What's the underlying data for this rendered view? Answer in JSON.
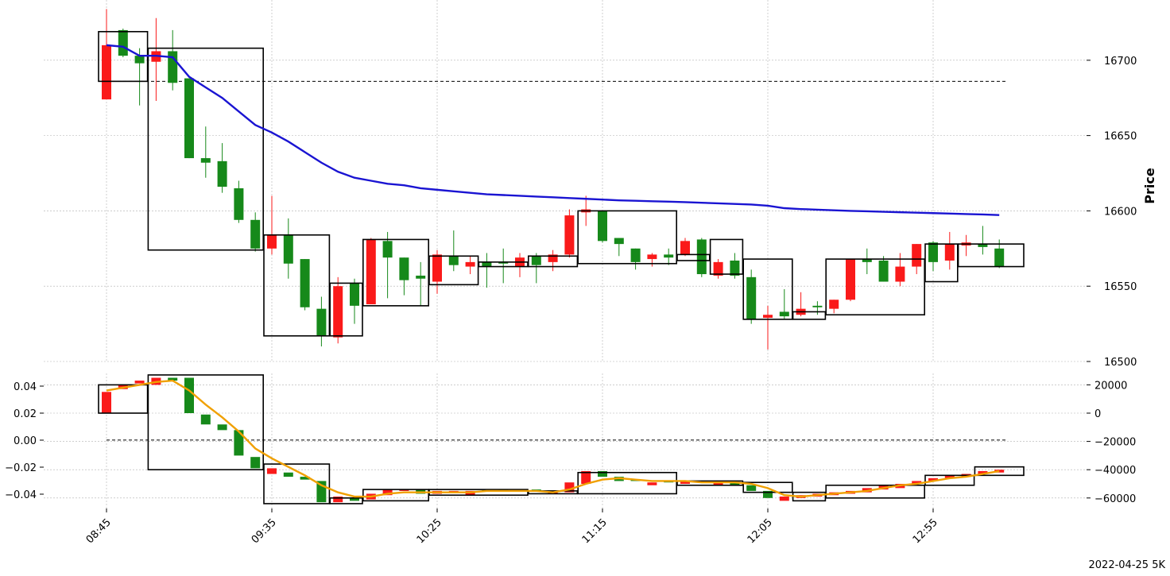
{
  "chart_data": {
    "type": "candlestick",
    "footer_label": "2022-04-25 5K",
    "colors": {
      "up": "#16891a",
      "down": "#fa1a1a",
      "ma_price": "#1a14d2",
      "ma_volume": "#f0a000",
      "box": "#000000",
      "grid": "#b0b0b0"
    },
    "x_tick_labels": [
      "08:45",
      "09:35",
      "10:25",
      "11:15",
      "12:05",
      "12:55"
    ],
    "x_tick_indices": [
      0,
      10,
      20,
      30,
      40,
      50
    ],
    "price_panel": {
      "ylabel": "Price",
      "y_ticks": [
        16500,
        16550,
        16600,
        16650,
        16700
      ],
      "ylim": [
        16500,
        16740
      ],
      "reference_line": 16686,
      "candles": [
        {
          "o": 16674,
          "h": 16734,
          "l": 16675,
          "c": 16710,
          "dir": "down"
        },
        {
          "o": 16703,
          "h": 16721,
          "l": 16702,
          "c": 16720,
          "dir": "up"
        },
        {
          "o": 16698,
          "h": 16708,
          "l": 16670,
          "c": 16703,
          "dir": "up"
        },
        {
          "o": 16706,
          "h": 16728,
          "l": 16673,
          "c": 16699,
          "dir": "down"
        },
        {
          "o": 16685,
          "h": 16720,
          "l": 16680,
          "c": 16706,
          "dir": "up"
        },
        {
          "o": 16635,
          "h": 16688,
          "l": 16635,
          "c": 16688,
          "dir": "up"
        },
        {
          "o": 16632,
          "h": 16656,
          "l": 16622,
          "c": 16635,
          "dir": "up"
        },
        {
          "o": 16616,
          "h": 16645,
          "l": 16612,
          "c": 16633,
          "dir": "up"
        },
        {
          "o": 16594,
          "h": 16620,
          "l": 16592,
          "c": 16615,
          "dir": "up"
        },
        {
          "o": 16575,
          "h": 16599,
          "l": 16573,
          "c": 16594,
          "dir": "up"
        },
        {
          "o": 16575,
          "h": 16610,
          "l": 16571,
          "c": 16584,
          "dir": "down"
        },
        {
          "o": 16565,
          "h": 16595,
          "l": 16555,
          "c": 16584,
          "dir": "up"
        },
        {
          "o": 16536,
          "h": 16568,
          "l": 16534,
          "c": 16568,
          "dir": "up"
        },
        {
          "o": 16517,
          "h": 16543,
          "l": 16510,
          "c": 16535,
          "dir": "up"
        },
        {
          "o": 16550,
          "h": 16556,
          "l": 16512,
          "c": 16516,
          "dir": "down"
        },
        {
          "o": 16537,
          "h": 16555,
          "l": 16525,
          "c": 16552,
          "dir": "up"
        },
        {
          "o": 16538,
          "h": 16582,
          "l": 16538,
          "c": 16581,
          "dir": "down"
        },
        {
          "o": 16569,
          "h": 16586,
          "l": 16542,
          "c": 16580,
          "dir": "up"
        },
        {
          "o": 16554,
          "h": 16569,
          "l": 16544,
          "c": 16569,
          "dir": "up"
        },
        {
          "o": 16555,
          "h": 16566,
          "l": 16537,
          "c": 16557,
          "dir": "up"
        },
        {
          "o": 16553,
          "h": 16574,
          "l": 16545,
          "c": 16571,
          "dir": "down"
        },
        {
          "o": 16564,
          "h": 16587,
          "l": 16560,
          "c": 16570,
          "dir": "up"
        },
        {
          "o": 16563,
          "h": 16570,
          "l": 16558,
          "c": 16566,
          "dir": "down"
        },
        {
          "o": 16563,
          "h": 16572,
          "l": 16549,
          "c": 16566,
          "dir": "up"
        },
        {
          "o": 16565,
          "h": 16575,
          "l": 16552,
          "c": 16566,
          "dir": "up"
        },
        {
          "o": 16563,
          "h": 16572,
          "l": 16556,
          "c": 16569,
          "dir": "down"
        },
        {
          "o": 16564,
          "h": 16572,
          "l": 16552,
          "c": 16570,
          "dir": "up"
        },
        {
          "o": 16566,
          "h": 16574,
          "l": 16560,
          "c": 16571,
          "dir": "down"
        },
        {
          "o": 16571,
          "h": 16601,
          "l": 16569,
          "c": 16597,
          "dir": "down"
        },
        {
          "o": 16599,
          "h": 16610,
          "l": 16590,
          "c": 16601,
          "dir": "down"
        },
        {
          "o": 16580,
          "h": 16600,
          "l": 16579,
          "c": 16600,
          "dir": "up"
        },
        {
          "o": 16578,
          "h": 16582,
          "l": 16570,
          "c": 16582,
          "dir": "up"
        },
        {
          "o": 16566,
          "h": 16575,
          "l": 16561,
          "c": 16575,
          "dir": "up"
        },
        {
          "o": 16568,
          "h": 16572,
          "l": 16563,
          "c": 16571,
          "dir": "down"
        },
        {
          "o": 16569,
          "h": 16575,
          "l": 16564,
          "c": 16571,
          "dir": "up"
        },
        {
          "o": 16571,
          "h": 16582,
          "l": 16570,
          "c": 16580,
          "dir": "down"
        },
        {
          "o": 16558,
          "h": 16582,
          "l": 16556,
          "c": 16581,
          "dir": "up"
        },
        {
          "o": 16557,
          "h": 16568,
          "l": 16555,
          "c": 16566,
          "dir": "down"
        },
        {
          "o": 16557,
          "h": 16572,
          "l": 16555,
          "c": 16567,
          "dir": "up"
        },
        {
          "o": 16528,
          "h": 16561,
          "l": 16525,
          "c": 16556,
          "dir": "up"
        },
        {
          "o": 16529,
          "h": 16537,
          "l": 16508,
          "c": 16531,
          "dir": "down"
        },
        {
          "o": 16530,
          "h": 16548,
          "l": 16528,
          "c": 16533,
          "dir": "up"
        },
        {
          "o": 16531,
          "h": 16546,
          "l": 16530,
          "c": 16535,
          "dir": "down"
        },
        {
          "o": 16536,
          "h": 16540,
          "l": 16531,
          "c": 16537,
          "dir": "up"
        },
        {
          "o": 16535,
          "h": 16541,
          "l": 16532,
          "c": 16541,
          "dir": "down"
        },
        {
          "o": 16541,
          "h": 16568,
          "l": 16540,
          "c": 16568,
          "dir": "down"
        },
        {
          "o": 16566,
          "h": 16575,
          "l": 16558,
          "c": 16568,
          "dir": "up"
        },
        {
          "o": 16553,
          "h": 16570,
          "l": 16553,
          "c": 16567,
          "dir": "up"
        },
        {
          "o": 16563,
          "h": 16572,
          "l": 16550,
          "c": 16553,
          "dir": "down"
        },
        {
          "o": 16563,
          "h": 16578,
          "l": 16558,
          "c": 16578,
          "dir": "down"
        },
        {
          "o": 16566,
          "h": 16580,
          "l": 16560,
          "c": 16579,
          "dir": "up"
        },
        {
          "o": 16567,
          "h": 16586,
          "l": 16561,
          "c": 16578,
          "dir": "down"
        },
        {
          "o": 16577,
          "h": 16584,
          "l": 16570,
          "c": 16579,
          "dir": "down"
        },
        {
          "o": 16576,
          "h": 16590,
          "l": 16571,
          "c": 16578,
          "dir": "up"
        },
        {
          "o": 16563,
          "h": 16581,
          "l": 16562,
          "c": 16575,
          "dir": "up"
        }
      ],
      "ma_line": [
        16710,
        16709,
        16703,
        16703,
        16702,
        16689,
        16682,
        16675,
        16666,
        16657,
        16652,
        16646,
        16639,
        16632,
        16626,
        16622,
        16620,
        16618,
        16617,
        16615,
        16614,
        16613,
        16612,
        16611,
        16610.5,
        16610,
        16609.5,
        16609,
        16608.5,
        16608,
        16607.5,
        16607,
        16606.7,
        16606.4,
        16606.1,
        16605.8,
        16605.4,
        16605,
        16604.6,
        16604.2,
        16603.4,
        16601.8,
        16601.2,
        16600.8,
        16600.4,
        16600,
        16599.7,
        16599.4,
        16599.1,
        16598.8,
        16598.5,
        16598.2,
        16597.9,
        16597.6,
        16597.2
      ],
      "boxes": [
        {
          "start": 0,
          "end": 2,
          "low": 16686,
          "high": 16719
        },
        {
          "start": 3,
          "end": 9,
          "low": 16574,
          "high": 16708
        },
        {
          "start": 10,
          "end": 13,
          "low": 16517,
          "high": 16584
        },
        {
          "start": 14,
          "end": 15,
          "low": 16517,
          "high": 16552
        },
        {
          "start": 16,
          "end": 19,
          "low": 16537,
          "high": 16581
        },
        {
          "start": 20,
          "end": 22,
          "low": 16551,
          "high": 16570
        },
        {
          "start": 23,
          "end": 25,
          "low": 16563,
          "high": 16566
        },
        {
          "start": 26,
          "end": 28,
          "low": 16563,
          "high": 16570
        },
        {
          "start": 29,
          "end": 34,
          "low": 16565,
          "high": 16600
        },
        {
          "start": 35,
          "end": 36,
          "low": 16567,
          "high": 16571
        },
        {
          "start": 37,
          "end": 38,
          "low": 16558,
          "high": 16581
        },
        {
          "start": 39,
          "end": 41,
          "low": 16528,
          "high": 16568
        },
        {
          "start": 42,
          "end": 43,
          "low": 16528,
          "high": 16533
        },
        {
          "start": 44,
          "end": 49,
          "low": 16531,
          "high": 16568
        },
        {
          "start": 50,
          "end": 51,
          "low": 16553,
          "high": 16578
        },
        {
          "start": 52,
          "end": 55,
          "low": 16563,
          "high": 16578
        }
      ]
    },
    "lower_panel": {
      "left_y_ticks": [
        -0.04,
        -0.02,
        0.0,
        0.02,
        0.04
      ],
      "left_y_tick_labels": [
        "−0.04",
        "−0.02",
        "0.00",
        "0.02",
        "0.04"
      ],
      "right_y_ticks": [
        -60000,
        -40000,
        -20000,
        0,
        20000
      ],
      "right_y_tick_labels": [
        "−60000",
        "−40000",
        "−20000",
        "0",
        "20000"
      ],
      "right_ylim": [
        -65000,
        27000
      ],
      "reference_line": -19000,
      "bars": [
        {
          "o": 0,
          "c": 15000,
          "dir": "down"
        },
        {
          "o": 17000,
          "c": 20000,
          "dir": "down"
        },
        {
          "o": 21000,
          "c": 23000,
          "dir": "down"
        },
        {
          "o": 20000,
          "c": 25000,
          "dir": "down"
        },
        {
          "o": 25000,
          "c": 23000,
          "dir": "up"
        },
        {
          "o": 25000,
          "c": 0,
          "dir": "up"
        },
        {
          "o": -1000,
          "c": -8000,
          "dir": "up"
        },
        {
          "o": -8000,
          "c": -12000,
          "dir": "up"
        },
        {
          "o": -12000,
          "c": -30000,
          "dir": "up"
        },
        {
          "o": -31000,
          "c": -39000,
          "dir": "up"
        },
        {
          "o": -39000,
          "c": -43000,
          "dir": "down"
        },
        {
          "o": -42000,
          "c": -45000,
          "dir": "up"
        },
        {
          "o": -45000,
          "c": -47000,
          "dir": "up"
        },
        {
          "o": -48000,
          "c": -63000,
          "dir": "up"
        },
        {
          "o": -63000,
          "c": -59000,
          "dir": "down"
        },
        {
          "o": -62000,
          "c": -60000,
          "dir": "up"
        },
        {
          "o": -61000,
          "c": -57000,
          "dir": "down"
        },
        {
          "o": -58000,
          "c": -54000,
          "dir": "down"
        },
        {
          "o": -55000,
          "c": -54000,
          "dir": "down"
        },
        {
          "o": -54000,
          "c": -57000,
          "dir": "up"
        },
        {
          "o": -57000,
          "c": -55000,
          "dir": "down"
        },
        {
          "o": -56000,
          "c": -55000,
          "dir": "down"
        },
        {
          "o": -58000,
          "c": -55000,
          "dir": "down"
        },
        {
          "o": -55000,
          "c": -54500,
          "dir": "up"
        },
        {
          "o": -54500,
          "c": -54000,
          "dir": "up"
        },
        {
          "o": -55000,
          "c": -54500,
          "dir": "down"
        },
        {
          "o": -54500,
          "c": -54000,
          "dir": "up"
        },
        {
          "o": -57000,
          "c": -55000,
          "dir": "down"
        },
        {
          "o": -56000,
          "c": -49000,
          "dir": "down"
        },
        {
          "o": -50000,
          "c": -41000,
          "dir": "down"
        },
        {
          "o": -41000,
          "c": -45000,
          "dir": "up"
        },
        {
          "o": -45000,
          "c": -48000,
          "dir": "up"
        },
        {
          "o": -47000,
          "c": -48000,
          "dir": "up"
        },
        {
          "o": -51000,
          "c": -49000,
          "dir": "down"
        },
        {
          "o": -48000,
          "c": -49000,
          "dir": "up"
        },
        {
          "o": -50000,
          "c": -48000,
          "dir": "down"
        },
        {
          "o": -48000,
          "c": -49000,
          "dir": "up"
        },
        {
          "o": -51000,
          "c": -49000,
          "dir": "down"
        },
        {
          "o": -49000,
          "c": -51000,
          "dir": "up"
        },
        {
          "o": -51000,
          "c": -55000,
          "dir": "up"
        },
        {
          "o": -55000,
          "c": -60000,
          "dir": "up"
        },
        {
          "o": -62000,
          "c": -59000,
          "dir": "down"
        },
        {
          "o": -60000,
          "c": -58000,
          "dir": "down"
        },
        {
          "o": -59000,
          "c": -57000,
          "dir": "down"
        },
        {
          "o": -58000,
          "c": -56000,
          "dir": "down"
        },
        {
          "o": -57000,
          "c": -55000,
          "dir": "down"
        },
        {
          "o": -56000,
          "c": -53000,
          "dir": "down"
        },
        {
          "o": -54000,
          "c": -51000,
          "dir": "down"
        },
        {
          "o": -53000,
          "c": -50000,
          "dir": "down"
        },
        {
          "o": -50000,
          "c": -48000,
          "dir": "down"
        },
        {
          "o": -48000,
          "c": -46000,
          "dir": "down"
        },
        {
          "o": -46000,
          "c": -44000,
          "dir": "down"
        },
        {
          "o": -45000,
          "c": -43000,
          "dir": "down"
        },
        {
          "o": -43000,
          "c": -41000,
          "dir": "down"
        },
        {
          "o": -42000,
          "c": -40000,
          "dir": "down"
        }
      ],
      "ma_line": [
        16000,
        18000,
        20000,
        22000,
        23000,
        16000,
        6000,
        -3000,
        -13000,
        -25000,
        -32000,
        -38000,
        -44000,
        -51000,
        -56000,
        -59000,
        -59000,
        -57000,
        -56000,
        -56000,
        -56000,
        -56000,
        -56000,
        -55000,
        -55000,
        -55000,
        -55000,
        -56000,
        -54000,
        -50000,
        -47000,
        -46000,
        -47000,
        -48000,
        -48000,
        -48000,
        -49000,
        -49000,
        -49000,
        -50000,
        -53000,
        -58000,
        -59000,
        -58000,
        -57000,
        -56000,
        -55000,
        -53000,
        -51000,
        -50000,
        -48000,
        -46000,
        -45000,
        -43000,
        -41000
      ],
      "boxes": [
        {
          "start": 0,
          "end": 2,
          "low": 0,
          "high": 20000
        },
        {
          "start": 3,
          "end": 9,
          "low": -40000,
          "high": 27000
        },
        {
          "start": 10,
          "end": 13,
          "low": -64000,
          "high": -36000
        },
        {
          "start": 14,
          "end": 15,
          "low": -64000,
          "high": -60000
        },
        {
          "start": 16,
          "end": 19,
          "low": -62000,
          "high": -54000
        },
        {
          "start": 20,
          "end": 25,
          "low": -58000,
          "high": -54000
        },
        {
          "start": 26,
          "end": 28,
          "low": -57000,
          "high": -55000
        },
        {
          "start": 29,
          "end": 34,
          "low": -57000,
          "high": -42000
        },
        {
          "start": 35,
          "end": 38,
          "low": -51000,
          "high": -48000
        },
        {
          "start": 39,
          "end": 41,
          "low": -56000,
          "high": -49000
        },
        {
          "start": 42,
          "end": 43,
          "low": -62000,
          "high": -56000
        },
        {
          "start": 44,
          "end": 49,
          "low": -60000,
          "high": -51000
        },
        {
          "start": 50,
          "end": 52,
          "low": -51000,
          "high": -44000
        },
        {
          "start": 53,
          "end": 55,
          "low": -44000,
          "high": -38000
        }
      ]
    }
  }
}
